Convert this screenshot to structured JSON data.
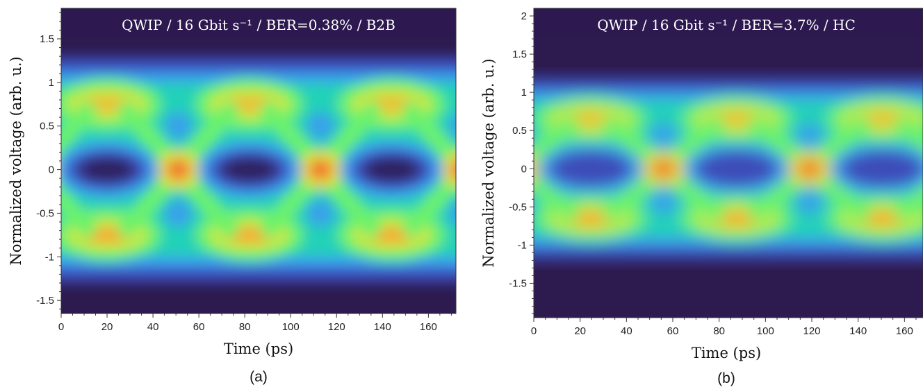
{
  "chart_data": [
    {
      "type": "heatmap",
      "panel_label": "(a)",
      "title": "QWIP / 16 Gbit s⁻¹ / BER=0.38% / B2B",
      "xlabel": "Time (ps)",
      "ylabel": "Normalized voltage (arb. u.)",
      "xlim": [
        0,
        172
      ],
      "ylim": [
        -1.65,
        1.85
      ],
      "x_ticks": [
        "0",
        "20",
        "40",
        "60",
        "80",
        "100",
        "120",
        "140",
        "160"
      ],
      "x_tick_values": [
        0,
        20,
        40,
        60,
        80,
        100,
        120,
        140,
        160
      ],
      "y_ticks": [
        "-1.5",
        "-1",
        "-0.5",
        "0",
        "0.5",
        "1",
        "1.5"
      ],
      "y_tick_values": [
        -1.5,
        -1,
        -0.5,
        0,
        0.5,
        1,
        1.5
      ],
      "colormap": [
        "#2d1a4f",
        "#3e4bb8",
        "#3a9bf0",
        "#23d1b8",
        "#6cf26a",
        "#d8e33a",
        "#f7a33a",
        "#e8502a"
      ],
      "eye_crossings_ps": [
        51,
        113
      ],
      "levels": [
        -0.75,
        0,
        0.75
      ],
      "grid": false
    },
    {
      "type": "heatmap",
      "panel_label": "(b)",
      "title": "QWIP / 16 Gbit s⁻¹ / BER=3.7% / HC",
      "xlabel": "Time (ps)",
      "ylabel": "Normalized voltage (arb. u.)",
      "xlim": [
        0,
        168
      ],
      "ylim": [
        -1.95,
        2.1
      ],
      "x_ticks": [
        "0",
        "20",
        "40",
        "60",
        "80",
        "100",
        "120",
        "140",
        "160"
      ],
      "x_tick_values": [
        0,
        20,
        40,
        60,
        80,
        100,
        120,
        140,
        160
      ],
      "y_ticks": [
        "-1.5",
        "-1",
        "-0.5",
        "0",
        "0.5",
        "1",
        "1.5",
        "2"
      ],
      "y_tick_values": [
        -1.5,
        -1,
        -0.5,
        0,
        0.5,
        1,
        1.5,
        2
      ],
      "colormap": [
        "#2d1a4f",
        "#3e4bb8",
        "#3a9bf0",
        "#23d1b8",
        "#6cf26a",
        "#d8e33a",
        "#f7a33a",
        "#e8502a"
      ],
      "eye_crossings_ps": [
        56,
        119
      ],
      "levels": [
        -0.65,
        0,
        0.65
      ],
      "grid": false
    }
  ]
}
